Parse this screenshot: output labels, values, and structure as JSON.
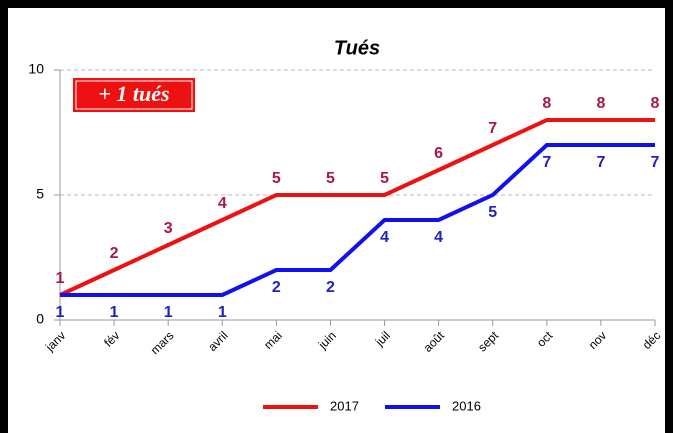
{
  "chart_data": {
    "type": "line",
    "title": "Tués",
    "annotation": "+ 1 tués",
    "categories": [
      "janv",
      "fév",
      "mars",
      "avril",
      "mai",
      "juin",
      "juil",
      "août",
      "sept",
      "oct",
      "nov",
      "déc"
    ],
    "series": [
      {
        "name": "2017",
        "color": "#ee1111",
        "label_color": "#a8174e",
        "values": [
          1,
          2,
          3,
          4,
          5,
          5,
          5,
          6,
          7,
          8,
          8,
          8
        ]
      },
      {
        "name": "2016",
        "color": "#1111ee",
        "label_color": "#2222c0",
        "values": [
          1,
          1,
          1,
          1,
          2,
          2,
          4,
          4,
          5,
          7,
          7,
          7
        ]
      }
    ],
    "ylim": [
      0,
      10
    ],
    "yticks": [
      0,
      5,
      10
    ],
    "grid": true,
    "legend": "bottom"
  }
}
